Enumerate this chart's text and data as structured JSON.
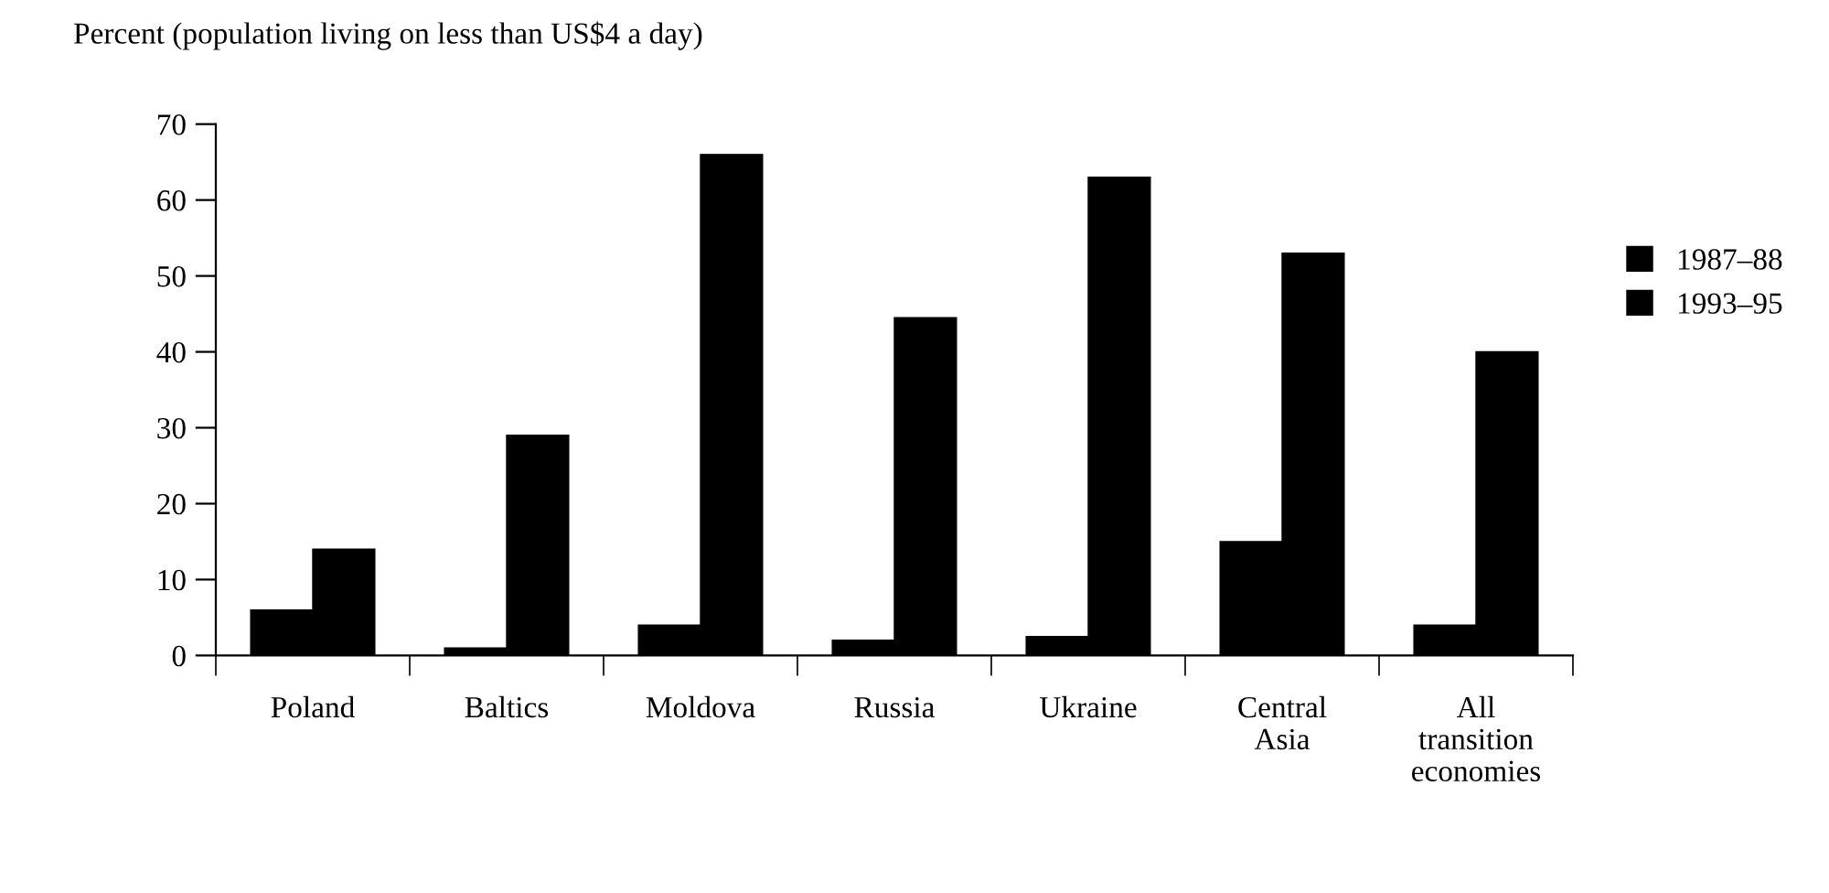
{
  "chart_data": {
    "type": "bar",
    "ylabel": "Percent (population living on less than US$4 a day)",
    "categories": [
      "Poland",
      "Baltics",
      "Moldova",
      "Russia",
      "Ukraine",
      "Central\nAsia",
      "All\ntransition\neconomies"
    ],
    "series": [
      {
        "name": "1987–88",
        "color": "#000000",
        "values": [
          6,
          1,
          4,
          2,
          2.5,
          15,
          4
        ]
      },
      {
        "name": "1993–95",
        "color": "#000000",
        "values": [
          14,
          29,
          66,
          44.5,
          63,
          53,
          40
        ]
      }
    ],
    "ylim": [
      0,
      70
    ],
    "yticks": [
      0,
      10,
      20,
      30,
      40,
      50,
      60,
      70
    ],
    "grid": false,
    "legend": "right"
  }
}
